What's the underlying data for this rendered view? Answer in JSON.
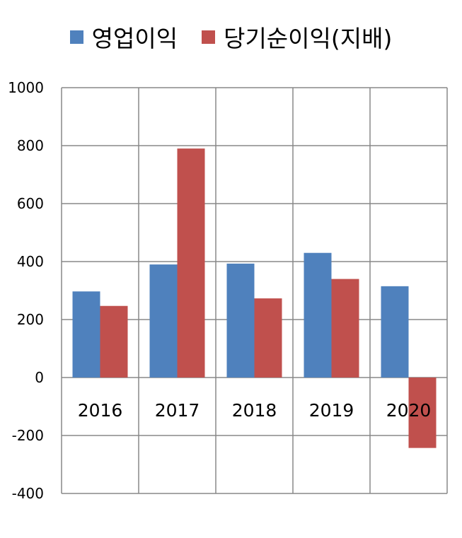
{
  "chart_data": {
    "type": "bar",
    "categories": [
      "2016",
      "2017",
      "2018",
      "2019",
      "2020"
    ],
    "series": [
      {
        "name": "영업이익",
        "color": "#4F81BD",
        "values": [
          297,
          390,
          393,
          430,
          315
        ]
      },
      {
        "name": "당기순이익(지배)",
        "color": "#C0504D",
        "values": [
          247,
          790,
          273,
          340,
          -243
        ]
      }
    ],
    "ylim": [
      -400,
      1000
    ],
    "yticks": [
      1000,
      800,
      600,
      400,
      200,
      0,
      -200,
      -400
    ],
    "grid": true,
    "legend_position": "top"
  }
}
